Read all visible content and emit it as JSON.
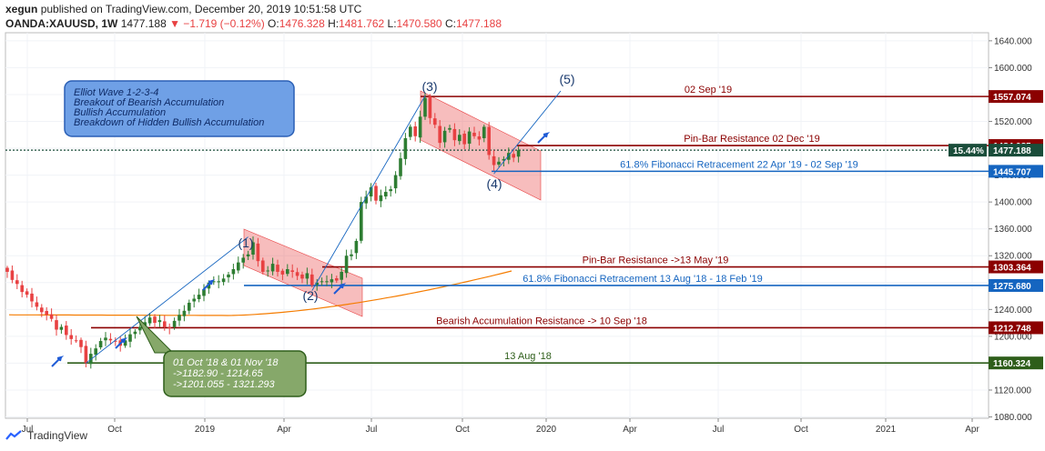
{
  "header": {
    "user": "xegun",
    "published_text": "published on TradingView.com, December 20, 2019 10:51:58 UTC",
    "symbol": "OANDA:XAUUSD, 1W",
    "price": "1477.188",
    "change": "▼ −1.719 (−0.12%)",
    "ohlc_o_label": "O:",
    "ohlc_o": "1476.328",
    "ohlc_h_label": "H:",
    "ohlc_h": "1481.762",
    "ohlc_l_label": "L:",
    "ohlc_l": "1470.580",
    "ohlc_c_label": "C:",
    "ohlc_c": "1477.188"
  },
  "footer": {
    "brand": "TradingView"
  },
  "colors": {
    "bull": "#2e7d32",
    "bear": "#e84142",
    "resistance": "#8b0000",
    "fib": "#1565c0",
    "support": "#2e5e1a",
    "ma": "#f57c00",
    "channel": "rgba(232,65,66,0.35)",
    "note_fill": "#6fa0e6",
    "green_note_fill": "#86a86a"
  },
  "chart_data": {
    "type": "candlestick",
    "title": "",
    "xlabel": "",
    "ylabel": "",
    "x_ticks": [
      "Jul",
      "Oct",
      "2019",
      "Apr",
      "Jul",
      "Oct",
      "2020",
      "Apr",
      "Jul",
      "Oct",
      "2021",
      "Apr"
    ],
    "y_ticks": [
      1080,
      1120,
      1160,
      1200,
      1240,
      1280,
      1320,
      1360,
      1400,
      1440,
      1480,
      1520,
      1560,
      1600,
      1640
    ],
    "y_tick_labels": [
      "1080.000",
      "1120.000",
      "1160.000",
      "1200.000",
      "1240.000",
      "1280.000",
      "1320.000",
      "1360.000",
      "1400.000",
      "1440.000",
      "1480.000",
      "1520.000",
      "1560.000",
      "1600.000",
      "1640.000"
    ],
    "ylim": [
      1078,
      1652
    ],
    "start_date": "2018-06-01",
    "weekly_closes": [
      1296,
      1284,
      1278,
      1266,
      1262,
      1252,
      1244,
      1236,
      1232,
      1226,
      1210,
      1214,
      1202,
      1196,
      1194,
      1184,
      1160,
      1174,
      1182,
      1193,
      1198,
      1194,
      1192,
      1186,
      1194,
      1203,
      1207,
      1214,
      1221,
      1228,
      1220,
      1224,
      1214,
      1212,
      1223,
      1232,
      1238,
      1250,
      1256,
      1262,
      1270,
      1280,
      1282,
      1282,
      1286,
      1292,
      1300,
      1310,
      1317,
      1322,
      1340,
      1312,
      1296,
      1298,
      1308,
      1296,
      1292,
      1300,
      1296,
      1290,
      1286,
      1294,
      1276,
      1280,
      1282,
      1282,
      1285,
      1283,
      1296,
      1320,
      1322,
      1342,
      1400,
      1408,
      1422,
      1402,
      1410,
      1415,
      1419,
      1440,
      1465,
      1495,
      1512,
      1498,
      1527,
      1555,
      1525,
      1515,
      1488,
      1506,
      1510,
      1492,
      1500,
      1486,
      1505,
      1498,
      1493,
      1512,
      1470,
      1455,
      1460,
      1464,
      1473,
      1466,
      1477
    ],
    "horizontal_levels": [
      {
        "label": "02 Sep '19",
        "value": "1557.074",
        "color": "#8b0000"
      },
      {
        "label": "Pin-Bar Resistance 02 Dec '19",
        "value": "1484.085",
        "color": "#8b0000"
      },
      {
        "label": "61.8% Fibonacci Retracement 22 Apr '19 - 02 Sep '19",
        "value": "1445.707",
        "color": "#1565c0"
      },
      {
        "label": "Pin-Bar Resistance ->13 May '19",
        "value": "1303.364",
        "color": "#8b0000"
      },
      {
        "label": "61.8% Fibonacci Retracement 13 Aug '18 - 18 Feb '19",
        "value": "1275.680",
        "color": "#1565c0"
      },
      {
        "label": "Bearish Accumulation Resistance -> 10 Sep '18",
        "value": "1212.748",
        "color": "#8b0000"
      },
      {
        "label": "13 Aug '18",
        "value": "1160.324",
        "color": "#2e5e1a"
      }
    ],
    "current_price_label": "1477.188",
    "current_change_label": "15.44%",
    "wave_labels": [
      "(1)",
      "(2)",
      "(3)",
      "(4)",
      "(5)"
    ],
    "note_box_lines": [
      "Elliot Wave 1-2-3-4",
      "Breakout of Bearish Accumulation",
      "Bullish Accumulation",
      "Breakdown of Hidden Bullish Accumulation"
    ],
    "green_box_lines": [
      "01 Oct '18 & 01 Nov '18",
      "->1182.90 - 1214.65",
      "->1201.055 - 1321.293"
    ]
  }
}
